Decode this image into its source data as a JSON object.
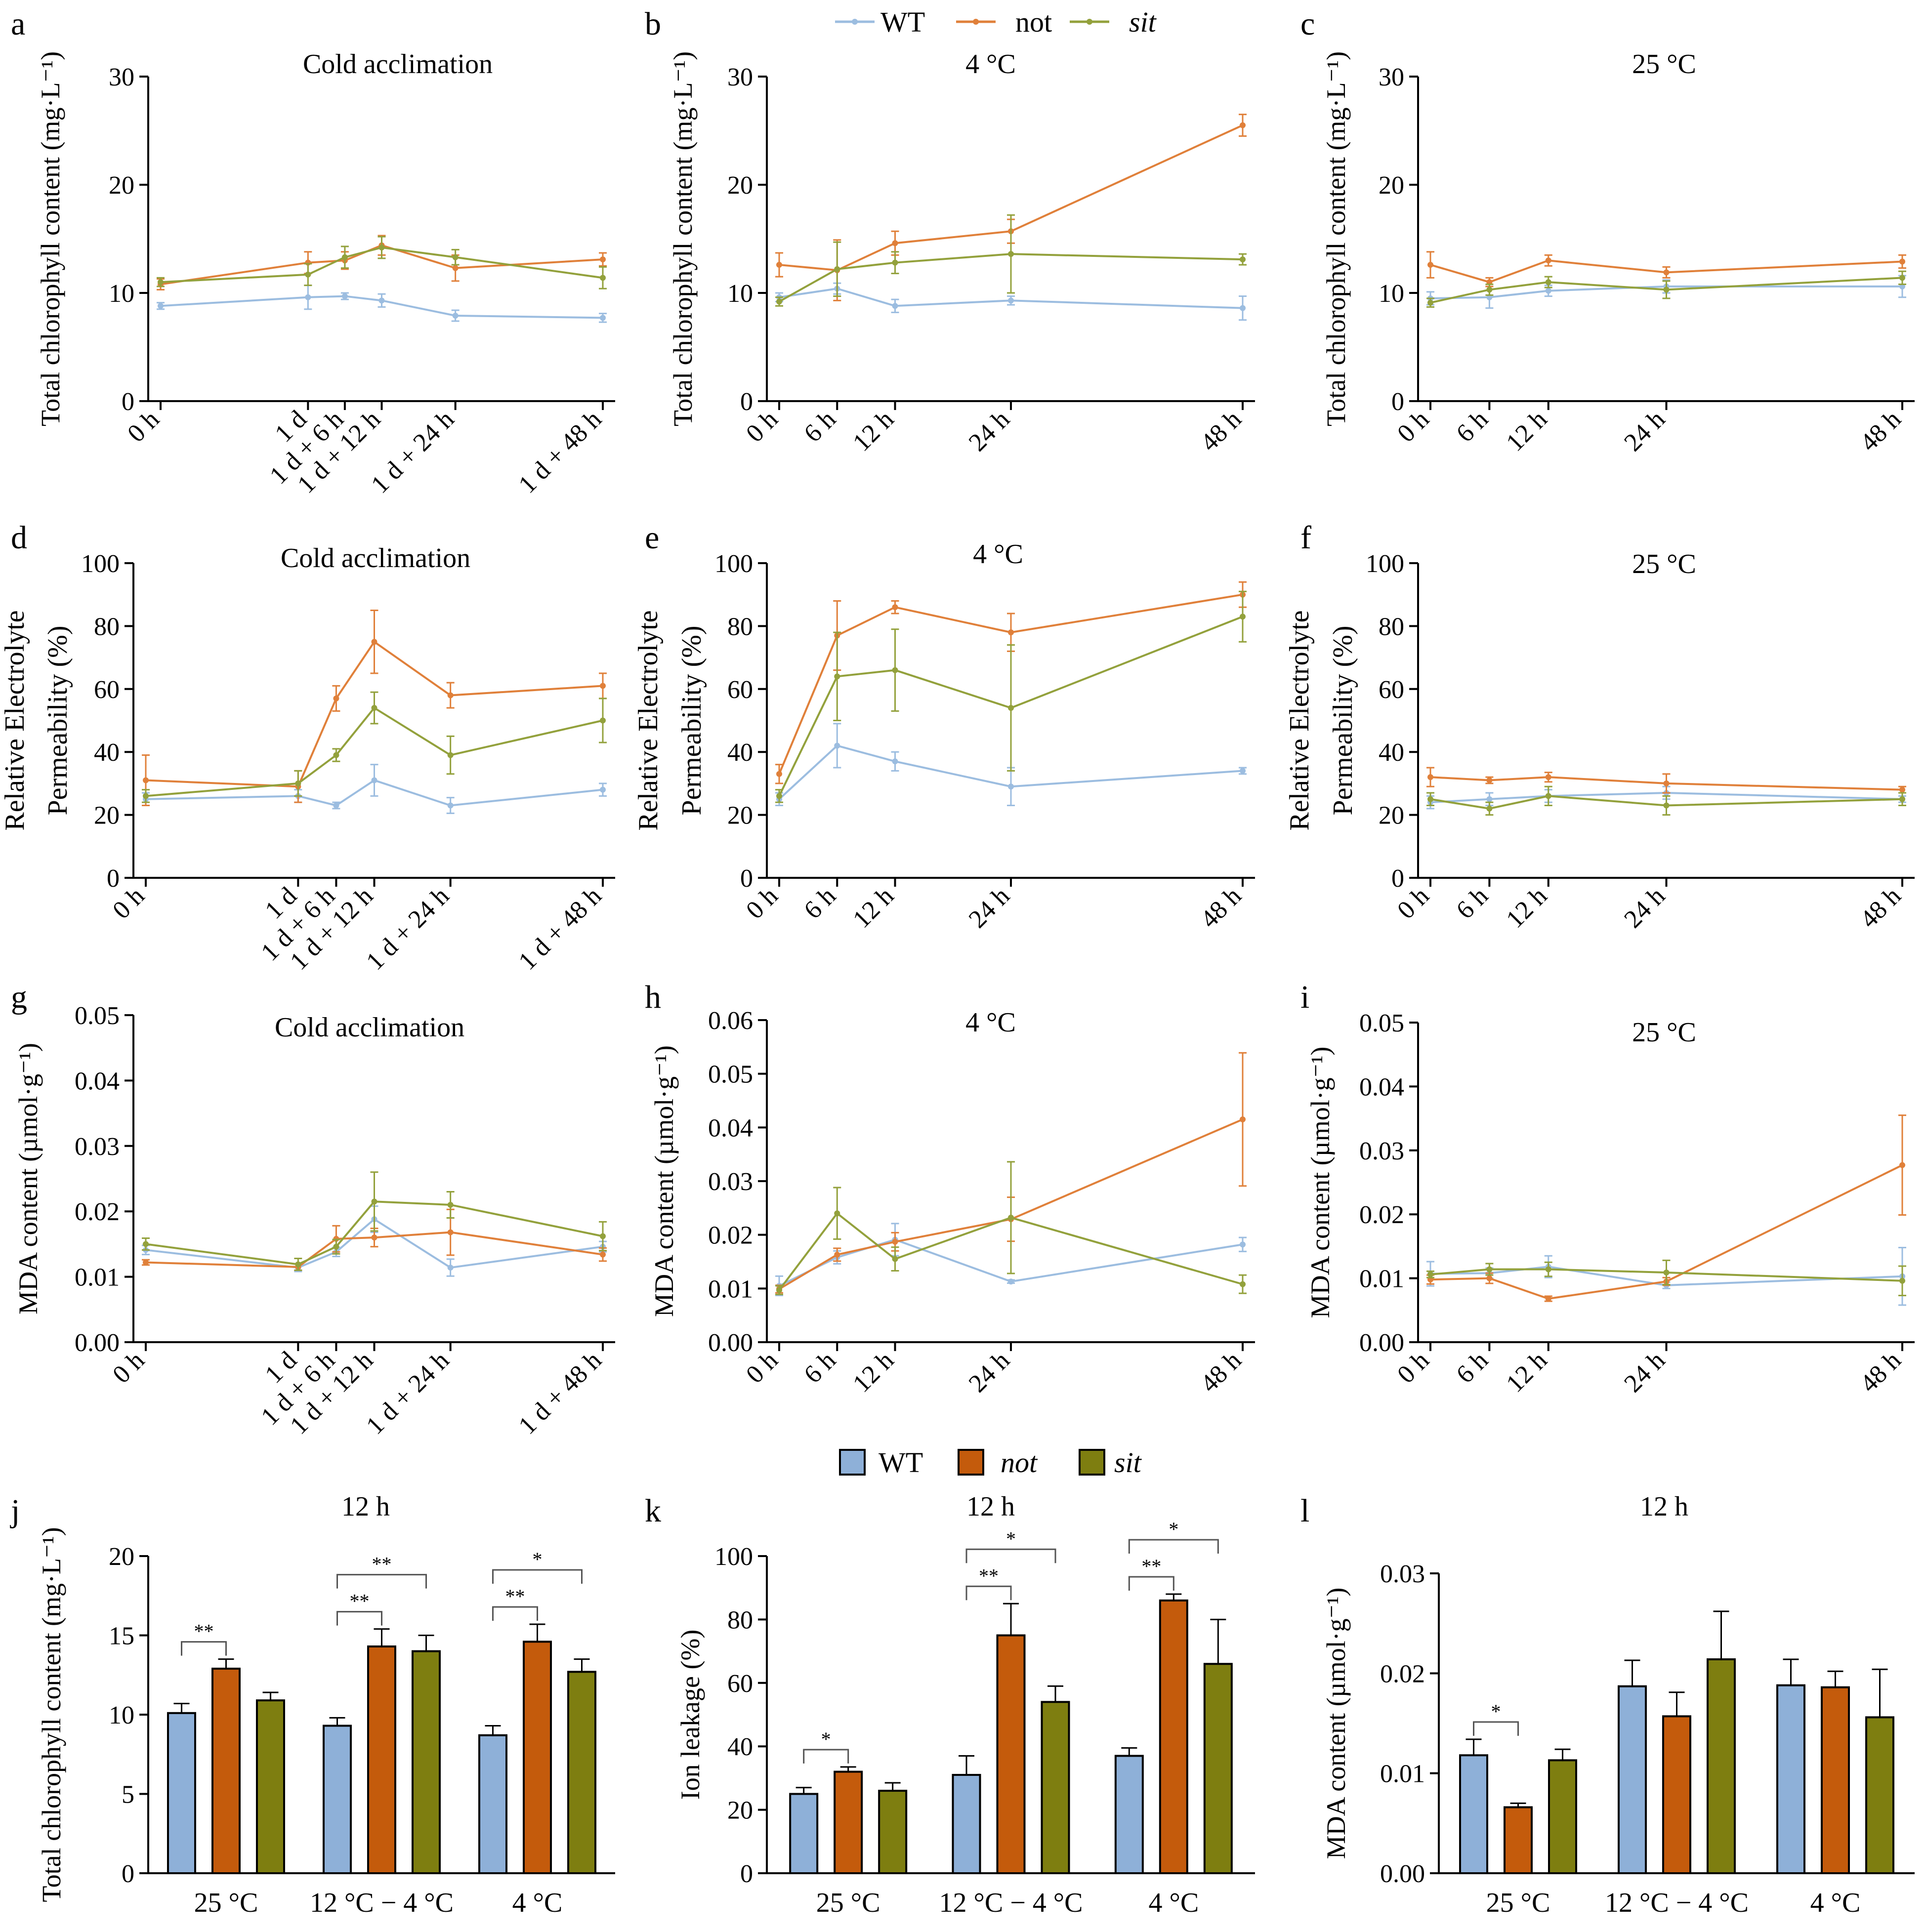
{
  "legends": {
    "line": [
      "WT",
      "not",
      "sit"
    ],
    "bar": [
      "WT",
      "not",
      "sit"
    ]
  },
  "colors": {
    "line": {
      "WT": "#9cbde0",
      "not": "#e0803a",
      "sit": "#93a13c"
    },
    "bar": {
      "WT": "#8eb0d8",
      "not": "#c45b0c",
      "sit": "#7e7e10"
    }
  },
  "chart_data": [
    {
      "panel": "a",
      "type": "line",
      "title": "Cold acclimation",
      "ylabel": "Total chlorophyll content (mg·L⁻¹)",
      "x": [
        0,
        24,
        30,
        36,
        48,
        72
      ],
      "tick_labels": [
        "0 h",
        "1 d",
        "1 d + 6 h",
        "1 d + 12 h",
        "1 d + 24 h",
        "1 d + 48 h"
      ],
      "ylim": [
        0,
        30
      ],
      "yticks": [
        0,
        10,
        20,
        30
      ],
      "series": [
        {
          "name": "WT",
          "values": [
            8.8,
            9.6,
            9.7,
            9.3,
            7.9,
            7.7
          ],
          "errors": [
            0.3,
            1.1,
            0.3,
            0.6,
            0.5,
            0.4
          ]
        },
        {
          "name": "not",
          "values": [
            10.8,
            12.8,
            13.0,
            14.4,
            12.3,
            13.1
          ],
          "errors": [
            0.5,
            1.0,
            0.8,
            0.9,
            1.2,
            0.6
          ]
        },
        {
          "name": "sit",
          "values": [
            11.0,
            11.7,
            13.3,
            14.2,
            13.3,
            11.4
          ],
          "errors": [
            0.4,
            1.0,
            1.0,
            1.0,
            0.7,
            1.0
          ]
        }
      ]
    },
    {
      "panel": "b",
      "type": "line",
      "title": "4 °C",
      "ylabel": "Total chlorophyll content (mg·L⁻¹)",
      "x": [
        0,
        6,
        12,
        24,
        48
      ],
      "tick_labels": [
        "0 h",
        "6 h",
        "12 h",
        "24 h",
        "48 h"
      ],
      "ylim": [
        0,
        30
      ],
      "yticks": [
        0,
        10,
        20,
        30
      ],
      "series": [
        {
          "name": "WT",
          "values": [
            9.6,
            10.4,
            8.8,
            9.3,
            8.6
          ],
          "errors": [
            0.4,
            0.5,
            0.6,
            0.4,
            1.1
          ]
        },
        {
          "name": "not",
          "values": [
            12.6,
            12.1,
            14.6,
            15.7,
            25.5
          ],
          "errors": [
            1.1,
            2.8,
            1.1,
            1.1,
            1.0
          ]
        },
        {
          "name": "sit",
          "values": [
            9.2,
            12.2,
            12.8,
            13.6,
            13.1
          ],
          "errors": [
            0.4,
            2.5,
            1.0,
            3.6,
            0.5
          ]
        }
      ]
    },
    {
      "panel": "c",
      "type": "line",
      "title": "25 °C",
      "ylabel": "Total chlorophyll content (mg·L⁻¹)",
      "x": [
        0,
        6,
        12,
        24,
        48
      ],
      "tick_labels": [
        "0 h",
        "6 h",
        "12 h",
        "24 h",
        "48 h"
      ],
      "ylim": [
        0,
        30
      ],
      "yticks": [
        0,
        10,
        20,
        30
      ],
      "series": [
        {
          "name": "WT",
          "values": [
            9.5,
            9.6,
            10.2,
            10.6,
            10.6
          ],
          "errors": [
            0.6,
            1.0,
            0.5,
            0.6,
            1.0
          ]
        },
        {
          "name": "not",
          "values": [
            12.6,
            11.0,
            13.0,
            11.9,
            12.9
          ],
          "errors": [
            1.2,
            0.4,
            0.5,
            0.5,
            0.6
          ]
        },
        {
          "name": "sit",
          "values": [
            9.1,
            10.3,
            11.0,
            10.3,
            11.4
          ],
          "errors": [
            0.4,
            0.5,
            0.5,
            0.8,
            0.6
          ]
        }
      ]
    },
    {
      "panel": "d",
      "type": "line",
      "title": "Cold acclimation",
      "ylabel": [
        "Relative Electrolyte",
        "Permeability (%)"
      ],
      "x": [
        0,
        24,
        30,
        36,
        48,
        72
      ],
      "tick_labels": [
        "0 h",
        "1 d",
        "1 d + 6 h",
        "1 d + 12 h",
        "1 d + 24 h",
        "1 d + 48 h"
      ],
      "ylim": [
        0,
        100
      ],
      "yticks": [
        0,
        20,
        40,
        60,
        80,
        100
      ],
      "series": [
        {
          "name": "WT",
          "values": [
            25,
            26,
            23,
            31,
            23,
            28
          ],
          "errors": [
            2,
            2,
            1,
            5,
            2.5,
            2
          ]
        },
        {
          "name": "not",
          "values": [
            31,
            29,
            57,
            75,
            58,
            61
          ],
          "errors": [
            8,
            5,
            4,
            10,
            4,
            4
          ]
        },
        {
          "name": "sit",
          "values": [
            26,
            30,
            39,
            54,
            39,
            50
          ],
          "errors": [
            2,
            4,
            2,
            5,
            6,
            7
          ]
        }
      ]
    },
    {
      "panel": "e",
      "type": "line",
      "title": "4 °C",
      "ylabel": [
        "Relative Electrolyte",
        "Permeability (%)"
      ],
      "x": [
        0,
        6,
        12,
        24,
        48
      ],
      "tick_labels": [
        "0 h",
        "6 h",
        "12 h",
        "24 h",
        "48 h"
      ],
      "ylim": [
        0,
        100
      ],
      "yticks": [
        0,
        20,
        40,
        60,
        80,
        100
      ],
      "series": [
        {
          "name": "WT",
          "values": [
            25,
            42,
            37,
            29,
            34
          ],
          "errors": [
            2,
            7,
            3,
            6,
            1
          ]
        },
        {
          "name": "not",
          "values": [
            33,
            77,
            86,
            78,
            90
          ],
          "errors": [
            3,
            11,
            2,
            6,
            4
          ]
        },
        {
          "name": "sit",
          "values": [
            26,
            64,
            66,
            54,
            83
          ],
          "errors": [
            2,
            14,
            13,
            20,
            8
          ]
        }
      ]
    },
    {
      "panel": "f",
      "type": "line",
      "title": "25 °C",
      "ylabel": [
        "Relative Electrolyte",
        "Permeability (%)"
      ],
      "x": [
        0,
        6,
        12,
        24,
        48
      ],
      "tick_labels": [
        "0 h",
        "6 h",
        "12 h",
        "24 h",
        "48 h"
      ],
      "ylim": [
        0,
        100
      ],
      "yticks": [
        0,
        20,
        40,
        60,
        80,
        100
      ],
      "series": [
        {
          "name": "WT",
          "values": [
            24,
            25,
            26,
            27,
            25
          ],
          "errors": [
            2,
            2,
            2,
            2,
            1
          ]
        },
        {
          "name": "not",
          "values": [
            32,
            31,
            32,
            30,
            28
          ],
          "errors": [
            3,
            1,
            1.5,
            3,
            1
          ]
        },
        {
          "name": "sit",
          "values": [
            25,
            22,
            26,
            23,
            25
          ],
          "errors": [
            2,
            2,
            3,
            3,
            2
          ]
        }
      ]
    },
    {
      "panel": "g",
      "type": "line",
      "title": "Cold acclimation",
      "ylabel": "MDA content (µmol·g⁻¹)",
      "x": [
        0,
        24,
        30,
        36,
        48,
        72
      ],
      "tick_labels": [
        "0 h",
        "1 d",
        "1 d + 6 h",
        "1 d + 12 h",
        "1 d + 24 h",
        "1 d + 48 h"
      ],
      "ylim": [
        0,
        0.05
      ],
      "yticks": [
        0.0,
        0.01,
        0.02,
        0.03,
        0.04,
        0.05
      ],
      "tick_decimals": 2,
      "series": [
        {
          "name": "WT",
          "values": [
            0.0141,
            0.0114,
            0.0138,
            0.0188,
            0.0114,
            0.0146
          ],
          "errors": [
            0.0007,
            0.0006,
            0.0007,
            0.002,
            0.0013,
            0.0008
          ]
        },
        {
          "name": "not",
          "values": [
            0.0122,
            0.0115,
            0.0158,
            0.016,
            0.0168,
            0.0134
          ],
          "errors": [
            0.0004,
            0.0005,
            0.002,
            0.0014,
            0.0035,
            0.001
          ]
        },
        {
          "name": "sit",
          "values": [
            0.015,
            0.0119,
            0.0146,
            0.0215,
            0.021,
            0.0162
          ],
          "errors": [
            0.0009,
            0.0009,
            0.0011,
            0.0045,
            0.002,
            0.0022
          ]
        }
      ]
    },
    {
      "panel": "h",
      "type": "line",
      "title": "4 °C",
      "ylabel": "MDA content (µmol·g⁻¹)",
      "x": [
        0,
        6,
        12,
        24,
        48
      ],
      "tick_labels": [
        "0 h",
        "6 h",
        "12 h",
        "24 h",
        "48 h"
      ],
      "ylim": [
        0,
        0.06
      ],
      "yticks": [
        0.0,
        0.01,
        0.02,
        0.03,
        0.04,
        0.05,
        0.06
      ],
      "tick_decimals": 2,
      "series": [
        {
          "name": "WT",
          "values": [
            0.0105,
            0.0158,
            0.0191,
            0.0113,
            0.0182
          ],
          "errors": [
            0.0018,
            0.0012,
            0.003,
            0.0003,
            0.0013
          ]
        },
        {
          "name": "not",
          "values": [
            0.0099,
            0.0163,
            0.0187,
            0.0229,
            0.0415
          ],
          "errors": [
            0.0007,
            0.0012,
            0.0017,
            0.0041,
            0.0124
          ]
        },
        {
          "name": "sit",
          "values": [
            0.0097,
            0.024,
            0.0155,
            0.0232,
            0.0108
          ],
          "errors": [
            0.0008,
            0.0048,
            0.0022,
            0.0104,
            0.0017
          ]
        }
      ]
    },
    {
      "panel": "i",
      "type": "line",
      "title": "25 °C",
      "ylabel": "MDA content (µmol·g⁻¹)",
      "x": [
        0,
        6,
        12,
        24,
        48
      ],
      "tick_labels": [
        "0 h",
        "6 h",
        "12 h",
        "24 h",
        "48 h"
      ],
      "ylim": [
        0,
        0.05
      ],
      "yticks": [
        0.0,
        0.01,
        0.02,
        0.03,
        0.04,
        0.05
      ],
      "tick_decimals": 2,
      "series": [
        {
          "name": "WT",
          "values": [
            0.0107,
            0.0108,
            0.0118,
            0.0089,
            0.0103
          ],
          "errors": [
            0.0019,
            0.0008,
            0.0017,
            0.0005,
            0.0045
          ]
        },
        {
          "name": "not",
          "values": [
            0.0098,
            0.01,
            0.0068,
            0.0095,
            0.0277
          ],
          "errors": [
            0.0007,
            0.0008,
            0.0004,
            0.0006,
            0.0078
          ]
        },
        {
          "name": "sit",
          "values": [
            0.0106,
            0.0114,
            0.0114,
            0.0109,
            0.0096
          ],
          "errors": [
            0.0005,
            0.0009,
            0.0011,
            0.0019,
            0.0023
          ]
        }
      ]
    },
    {
      "panel": "j",
      "type": "bar",
      "title": "12 h",
      "ylabel": "Total chlorophyll content (mg·L⁻¹)",
      "categories": [
        "25 °C",
        "12 °C − 4 °C",
        "4 °C"
      ],
      "ylim": [
        0,
        20
      ],
      "yticks": [
        0,
        5,
        10,
        15,
        20
      ],
      "series": [
        {
          "name": "WT",
          "values": [
            10.1,
            9.3,
            8.7
          ],
          "errors": [
            0.6,
            0.5,
            0.6
          ]
        },
        {
          "name": "not",
          "values": [
            12.9,
            14.3,
            14.6
          ],
          "errors": [
            0.6,
            1.1,
            1.1
          ]
        },
        {
          "name": "sit",
          "values": [
            10.9,
            14.0,
            12.7
          ],
          "errors": [
            0.5,
            1.0,
            0.8
          ]
        }
      ],
      "significance": [
        {
          "group": 0,
          "from": 0,
          "to": 1,
          "label": "**",
          "level": 0
        },
        {
          "group": 1,
          "from": 0,
          "to": 1,
          "label": "**",
          "level": 0
        },
        {
          "group": 1,
          "from": 0,
          "to": 2,
          "label": "**",
          "level": 1
        },
        {
          "group": 2,
          "from": 0,
          "to": 1,
          "label": "**",
          "level": 0
        },
        {
          "group": 2,
          "from": 0,
          "to": 2,
          "label": "*",
          "level": 1
        }
      ]
    },
    {
      "panel": "k",
      "type": "bar",
      "title": "12 h",
      "ylabel": "Ion leakage (%)",
      "categories": [
        "25 °C",
        "12 °C − 4 °C",
        "4 °C"
      ],
      "ylim": [
        0,
        100
      ],
      "yticks": [
        0,
        20,
        40,
        60,
        80,
        100
      ],
      "series": [
        {
          "name": "WT",
          "values": [
            25,
            31,
            37
          ],
          "errors": [
            2,
            6,
            2.5
          ]
        },
        {
          "name": "not",
          "values": [
            32,
            75,
            86
          ],
          "errors": [
            1.5,
            10,
            2
          ]
        },
        {
          "name": "sit",
          "values": [
            26,
            54,
            66
          ],
          "errors": [
            2.5,
            5,
            14
          ]
        }
      ],
      "significance": [
        {
          "group": 0,
          "from": 0,
          "to": 1,
          "label": "*",
          "level": 0
        },
        {
          "group": 1,
          "from": 0,
          "to": 1,
          "label": "**",
          "level": 0
        },
        {
          "group": 1,
          "from": 0,
          "to": 2,
          "label": "*",
          "level": 1
        },
        {
          "group": 2,
          "from": 0,
          "to": 1,
          "label": "**",
          "level": 0
        },
        {
          "group": 2,
          "from": 0,
          "to": 2,
          "label": "*",
          "level": 1
        }
      ]
    },
    {
      "panel": "l",
      "type": "bar",
      "title": "12 h",
      "ylabel": "MDA content (µmol·g⁻¹)",
      "categories": [
        "25 °C",
        "12 °C − 4 °C",
        "4 °C"
      ],
      "ylim": [
        0,
        0.03
      ],
      "yticks": [
        0.0,
        0.01,
        0.02,
        0.03
      ],
      "tick_decimals": 2,
      "series": [
        {
          "name": "WT",
          "values": [
            0.0118,
            0.0187,
            0.0188
          ],
          "errors": [
            0.0016,
            0.0026,
            0.0026
          ]
        },
        {
          "name": "not",
          "values": [
            0.0066,
            0.0157,
            0.0186
          ],
          "errors": [
            0.0004,
            0.0024,
            0.0016
          ]
        },
        {
          "name": "sit",
          "values": [
            0.0113,
            0.0214,
            0.0156
          ],
          "errors": [
            0.0011,
            0.0048,
            0.0048
          ]
        }
      ],
      "significance": [
        {
          "group": 0,
          "from": 0,
          "to": 1,
          "label": "*",
          "level": 0
        }
      ]
    }
  ]
}
